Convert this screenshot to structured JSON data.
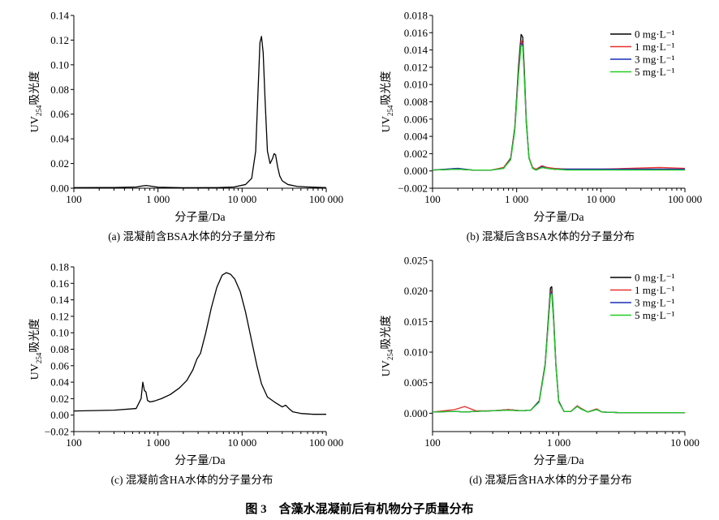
{
  "figure_title": "图 3　含藻水混凝前后有机物分子质量分布",
  "chart_data": [
    {
      "id": "a",
      "type": "line",
      "caption": "(a) 混凝前含BSA水体的分子量分布",
      "xlabel": "分子量/Da",
      "ylabel": "UV254吸光度",
      "x_scale": "log",
      "xlim": [
        100,
        100000
      ],
      "ylim": [
        0,
        0.14
      ],
      "x_ticks": [
        100,
        1000,
        10000,
        100000
      ],
      "x_tick_labels": [
        "100",
        "1 000",
        "10 000",
        "100 000"
      ],
      "y_ticks": [
        0,
        0.02,
        0.04,
        0.06,
        0.08,
        0.1,
        0.12,
        0.14
      ],
      "y_tick_labels": [
        "0.00",
        "0.02",
        "0.04",
        "0.06",
        "0.08",
        "0.10",
        "0.12",
        "0.14"
      ],
      "series": [
        {
          "color": "#000000",
          "x": [
            100,
            300,
            550,
            650,
            720,
            800,
            1000,
            2000,
            5000,
            8000,
            11000,
            13000,
            14500,
            15500,
            16300,
            17000,
            17800,
            18800,
            20000,
            21500,
            23000,
            24000,
            25000,
            26500,
            28000,
            30000,
            35000,
            45000,
            60000,
            100000
          ],
          "y": [
            0.0005,
            0.0006,
            0.001,
            0.0018,
            0.0022,
            0.0018,
            0.0008,
            0.0004,
            0.0005,
            0.001,
            0.003,
            0.008,
            0.03,
            0.08,
            0.118,
            0.123,
            0.11,
            0.07,
            0.03,
            0.02,
            0.024,
            0.028,
            0.027,
            0.017,
            0.01,
            0.006,
            0.003,
            0.0015,
            0.001,
            0.0005
          ]
        }
      ]
    },
    {
      "id": "b",
      "type": "line",
      "caption": "(b) 混凝后含BSA水体的分子量分布",
      "xlabel": "分子量/Da",
      "ylabel": "UV254吸光度",
      "x_scale": "log",
      "xlim": [
        100,
        100000
      ],
      "ylim": [
        -0.002,
        0.018
      ],
      "x_ticks": [
        100,
        1000,
        10000,
        100000
      ],
      "x_tick_labels": [
        "100",
        "1 000",
        "10 000",
        "100 000"
      ],
      "y_ticks": [
        -0.002,
        0,
        0.002,
        0.004,
        0.006,
        0.008,
        0.01,
        0.012,
        0.014,
        0.016,
        0.018
      ],
      "y_tick_labels": [
        "−0.002",
        "0.000",
        "0.002",
        "0.004",
        "0.006",
        "0.008",
        "0.010",
        "0.012",
        "0.014",
        "0.016",
        "0.018"
      ],
      "legend_position": "top-right",
      "series": [
        {
          "name": "0 mg·L⁻¹",
          "color": "#000000",
          "x": [
            100,
            200,
            300,
            500,
            700,
            850,
            950,
            1050,
            1130,
            1180,
            1230,
            1300,
            1400,
            1550,
            1700,
            2000,
            2300,
            2800,
            4000,
            10000,
            50000,
            100000
          ],
          "y": [
            0.0001,
            0.0002,
            0.0001,
            0.0001,
            0.0003,
            0.0015,
            0.005,
            0.012,
            0.0158,
            0.0155,
            0.012,
            0.006,
            0.0015,
            0.0003,
            0.0001,
            0.0004,
            0.0003,
            0.0002,
            0.0002,
            0.0002,
            0.0002,
            0.0002
          ]
        },
        {
          "name": "1 mg·L⁻¹",
          "color": "#e8302c",
          "x": [
            100,
            200,
            300,
            500,
            700,
            850,
            950,
            1050,
            1130,
            1180,
            1230,
            1300,
            1400,
            1550,
            1700,
            2000,
            2300,
            2800,
            4000,
            10000,
            50000,
            100000
          ],
          "y": [
            0.0001,
            0.0003,
            0.0001,
            0.0001,
            0.0004,
            0.0015,
            0.005,
            0.0115,
            0.0151,
            0.0148,
            0.0115,
            0.0058,
            0.0016,
            0.0004,
            0.0002,
            0.0006,
            0.0004,
            0.0003,
            0.0002,
            0.0002,
            0.0004,
            0.0003
          ]
        },
        {
          "name": "3 mg·L⁻¹",
          "color": "#1a2db5",
          "x": [
            100,
            200,
            300,
            500,
            700,
            850,
            950,
            1050,
            1130,
            1180,
            1230,
            1300,
            1400,
            1550,
            1700,
            2000,
            2300,
            2800,
            4000,
            10000,
            50000,
            100000
          ],
          "y": [
            0.0001,
            0.0003,
            0.0001,
            0.0001,
            0.0003,
            0.0014,
            0.0048,
            0.0112,
            0.0148,
            0.0146,
            0.0112,
            0.0056,
            0.0015,
            0.0003,
            0.0001,
            0.0005,
            0.0003,
            0.0002,
            0.0002,
            0.0002,
            0.0002,
            0.0002
          ]
        },
        {
          "name": "5 mg·L⁻¹",
          "color": "#22cc22",
          "x": [
            100,
            200,
            300,
            500,
            700,
            850,
            950,
            1050,
            1130,
            1180,
            1230,
            1300,
            1400,
            1550,
            1700,
            2000,
            2300,
            2800,
            4000,
            10000,
            50000,
            100000
          ],
          "y": [
            0.0001,
            0.0002,
            0.0001,
            0.0001,
            0.0003,
            0.0013,
            0.0046,
            0.011,
            0.0146,
            0.0144,
            0.011,
            0.0055,
            0.0015,
            0.0003,
            0.0001,
            0.0004,
            0.0003,
            0.0002,
            0.0001,
            0.0001,
            0.0001,
            0.0001
          ]
        }
      ]
    },
    {
      "id": "c",
      "type": "line",
      "caption": "(c) 混凝前含HA水体的分子量分布",
      "xlabel": "分子量/Da",
      "ylabel": "UV254吸光度",
      "x_scale": "log",
      "xlim": [
        100,
        100000
      ],
      "ylim": [
        -0.02,
        0.18
      ],
      "x_ticks": [
        100,
        1000,
        10000,
        100000
      ],
      "x_tick_labels": [
        "100",
        "1 000",
        "10 000",
        "100 000"
      ],
      "y_ticks": [
        -0.02,
        0,
        0.02,
        0.04,
        0.06,
        0.08,
        0.1,
        0.12,
        0.14,
        0.16,
        0.18
      ],
      "y_tick_labels": [
        "−0.02",
        "0.00",
        "0.02",
        "0.04",
        "0.06",
        "0.08",
        "0.10",
        "0.12",
        "0.14",
        "0.16",
        "0.18"
      ],
      "series": [
        {
          "color": "#000000",
          "x": [
            100,
            300,
            550,
            630,
            660,
            690,
            720,
            750,
            800,
            900,
            1100,
            1400,
            1800,
            2200,
            2600,
            2900,
            3200,
            3700,
            4300,
            5000,
            5800,
            6500,
            7300,
            8200,
            9500,
            11000,
            13000,
            15000,
            17000,
            20000,
            25000,
            30000,
            33000,
            36000,
            40000,
            50000,
            70000,
            100000
          ],
          "y": [
            0.005,
            0.006,
            0.008,
            0.02,
            0.04,
            0.03,
            0.028,
            0.018,
            0.016,
            0.017,
            0.02,
            0.025,
            0.033,
            0.042,
            0.055,
            0.068,
            0.075,
            0.1,
            0.13,
            0.155,
            0.17,
            0.173,
            0.171,
            0.165,
            0.15,
            0.125,
            0.09,
            0.06,
            0.038,
            0.022,
            0.015,
            0.01,
            0.012,
            0.008,
            0.004,
            0.002,
            0.001,
            0.001
          ]
        }
      ]
    },
    {
      "id": "d",
      "type": "line",
      "caption": "(d) 混凝后含HA水体的分子量分布",
      "xlabel": "分子量/Da",
      "ylabel": "UV254吸光度",
      "x_scale": "log",
      "xlim": [
        100,
        10000
      ],
      "ylim": [
        -0.003,
        0.025
      ],
      "x_ticks": [
        100,
        1000,
        10000
      ],
      "x_tick_labels": [
        "100",
        "1 000",
        "10 000"
      ],
      "y_ticks": [
        0,
        0.005,
        0.01,
        0.015,
        0.02,
        0.025
      ],
      "y_tick_labels": [
        "0.000",
        "0.005",
        "0.010",
        "0.015",
        "0.020",
        "0.025"
      ],
      "legend_position": "top-right",
      "series": [
        {
          "name": "0 mg·L⁻¹",
          "color": "#000000",
          "x": [
            100,
            150,
            180,
            220,
            300,
            400,
            500,
            600,
            700,
            780,
            830,
            860,
            880,
            910,
            950,
            1000,
            1100,
            1250,
            1400,
            1500,
            1700,
            2000,
            2200,
            3000,
            5000,
            10000
          ],
          "y": [
            0.0002,
            0.0003,
            0.0002,
            0.0003,
            0.0004,
            0.0006,
            0.0004,
            0.0005,
            0.002,
            0.008,
            0.016,
            0.0205,
            0.0207,
            0.016,
            0.008,
            0.002,
            0.0003,
            0.0003,
            0.0012,
            0.0008,
            0.0002,
            0.0007,
            0.0002,
            0.0001,
            0.0001,
            0.0001
          ]
        },
        {
          "name": "1 mg·L⁻¹",
          "color": "#e8302c",
          "x": [
            100,
            150,
            180,
            220,
            300,
            400,
            500,
            600,
            700,
            780,
            830,
            860,
            880,
            910,
            950,
            1000,
            1100,
            1250,
            1400,
            1500,
            1700,
            2000,
            2200,
            3000,
            5000,
            10000
          ],
          "y": [
            0.0002,
            0.0006,
            0.0011,
            0.0004,
            0.0004,
            0.0006,
            0.0004,
            0.0005,
            0.0019,
            0.0078,
            0.0155,
            0.0198,
            0.02,
            0.0155,
            0.0078,
            0.0019,
            0.0003,
            0.0003,
            0.0012,
            0.0008,
            0.0002,
            0.0007,
            0.0002,
            0.0001,
            0.0001,
            0.0001
          ]
        },
        {
          "name": "3 mg·L⁻¹",
          "color": "#1a2db5",
          "x": [
            100,
            150,
            180,
            220,
            300,
            400,
            500,
            600,
            700,
            780,
            830,
            860,
            880,
            910,
            950,
            1000,
            1100,
            1250,
            1400,
            1500,
            1700,
            2000,
            2200,
            3000,
            5000,
            10000
          ],
          "y": [
            0.0002,
            0.0003,
            0.0002,
            0.0003,
            0.0004,
            0.0005,
            0.0004,
            0.0005,
            0.0019,
            0.0077,
            0.0153,
            0.0196,
            0.0198,
            0.0153,
            0.0077,
            0.0019,
            0.0003,
            0.0003,
            0.0011,
            0.0007,
            0.0002,
            0.0006,
            0.0002,
            0.0001,
            0.0001,
            0.0001
          ]
        },
        {
          "name": "5 mg·L⁻¹",
          "color": "#22cc22",
          "x": [
            100,
            150,
            180,
            220,
            300,
            400,
            500,
            600,
            700,
            780,
            830,
            860,
            880,
            910,
            950,
            1000,
            1100,
            1250,
            1400,
            1500,
            1700,
            2000,
            2200,
            3000,
            5000,
            10000
          ],
          "y": [
            0.0002,
            0.0003,
            0.0002,
            0.0003,
            0.0004,
            0.0005,
            0.0004,
            0.0005,
            0.0018,
            0.0076,
            0.0151,
            0.0194,
            0.0196,
            0.0151,
            0.0076,
            0.0018,
            0.0003,
            0.0003,
            0.0011,
            0.0007,
            0.0002,
            0.0006,
            0.0002,
            0.0001,
            0.0001,
            0.0001
          ]
        }
      ]
    }
  ]
}
